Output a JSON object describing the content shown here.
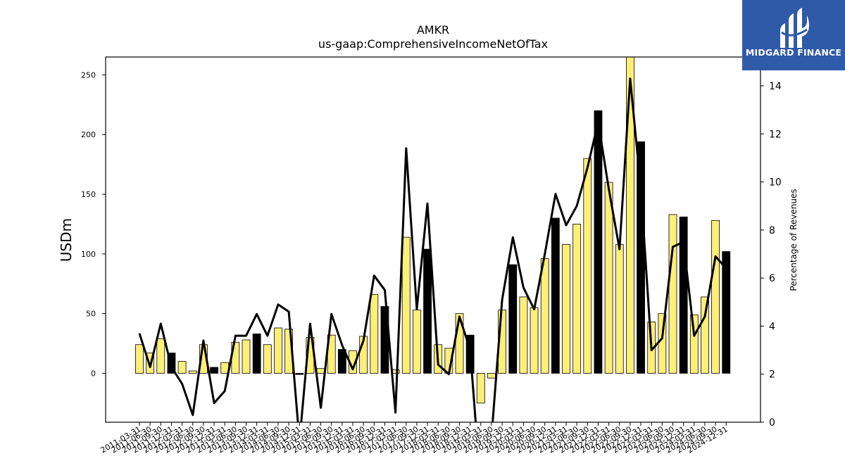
{
  "logo": {
    "text": "MIDGARD FINANCE"
  },
  "chart_data": {
    "type": "bar",
    "title": "AMKR",
    "subtitle": "us-gaap:ComprehensiveIncomeNetOfTax",
    "ylabel": "USDm",
    "y2label": "Percentage of Revenues",
    "ylim": [
      -41,
      265
    ],
    "y2lim": [
      0,
      15.2
    ],
    "yticks": [
      0,
      50,
      100,
      150,
      200,
      250
    ],
    "y2ticks": [
      0,
      2,
      4,
      6,
      8,
      10,
      12,
      14
    ],
    "grid": false,
    "colors": {
      "bar_quarter": "#ffee77",
      "bar_year_end": "#000000",
      "line": "#000000"
    },
    "categories": [
      "2011-03-31",
      "2011-06-30",
      "2011-09-30",
      "2011-12-31",
      "2012-03-31",
      "2012-06-30",
      "2012-09-30",
      "2012-12-31",
      "2013-03-31",
      "2013-06-30",
      "2013-09-30",
      "2013-12-31",
      "2014-03-31",
      "2014-06-30",
      "2014-09-30",
      "2014-12-31",
      "2015-03-31",
      "2015-06-30",
      "2015-09-30",
      "2015-12-31",
      "2016-03-31",
      "2016-06-30",
      "2016-09-30",
      "2016-12-31",
      "2017-03-31",
      "2017-06-30",
      "2017-09-30",
      "2017-12-31",
      "2018-03-31",
      "2018-06-30",
      "2018-09-30",
      "2018-12-31",
      "2019-03-31",
      "2019-06-30",
      "2019-09-30",
      "2019-12-31",
      "2020-03-31",
      "2020-06-30",
      "2020-09-30",
      "2020-12-31",
      "2021-03-31",
      "2021-06-30",
      "2021-09-30",
      "2021-12-31",
      "2022-03-31",
      "2022-06-30",
      "2022-09-30",
      "2022-12-31",
      "2023-03-31",
      "2023-06-30",
      "2023-09-30",
      "2023-12-31",
      "2024-03-31",
      "2024-06-30",
      "2024-09-30",
      "2024-12-31"
    ],
    "series": [
      {
        "type": "bar",
        "values": [
          24,
          17,
          29,
          17,
          10,
          2,
          24,
          5,
          9,
          26,
          28,
          33,
          24,
          38,
          37,
          -1,
          30,
          4,
          32,
          20,
          19,
          31,
          66,
          56,
          3,
          114,
          53,
          104,
          24,
          21,
          50,
          32,
          -25,
          -4,
          53,
          91,
          64,
          55,
          96,
          130,
          108,
          125,
          180,
          220,
          160,
          108,
          265,
          194,
          43,
          50,
          133,
          131,
          49,
          64,
          128,
          102
        ],
        "year_end": [
          false,
          false,
          false,
          true,
          false,
          false,
          false,
          true,
          false,
          false,
          false,
          true,
          false,
          false,
          false,
          true,
          false,
          false,
          false,
          true,
          false,
          false,
          false,
          true,
          false,
          false,
          false,
          true,
          false,
          false,
          false,
          true,
          false,
          false,
          false,
          true,
          false,
          false,
          false,
          true,
          false,
          false,
          false,
          true,
          false,
          false,
          false,
          true,
          false,
          false,
          false,
          true,
          false,
          false,
          false,
          true
        ]
      },
      {
        "type": "line",
        "axis": "y2",
        "values": [
          3.7,
          2.3,
          4.1,
          2.3,
          1.6,
          0.3,
          3.4,
          0.8,
          1.3,
          3.6,
          3.6,
          4.5,
          3.6,
          4.9,
          4.6,
          -0.8,
          4.1,
          0.6,
          4.5,
          3.2,
          2.2,
          3.4,
          6.1,
          5.5,
          0.4,
          11.4,
          4.7,
          9.1,
          2.4,
          2.0,
          4.4,
          3.0,
          -2.8,
          -0.6,
          5.1,
          7.7,
          5.6,
          4.7,
          7.0,
          9.5,
          8.2,
          9.0,
          10.6,
          12.5,
          9.7,
          7.2,
          14.3,
          9.7,
          3.0,
          3.5,
          7.3,
          7.5,
          3.6,
          4.4,
          6.9,
          6.4
        ]
      }
    ],
    "legend": "none"
  }
}
